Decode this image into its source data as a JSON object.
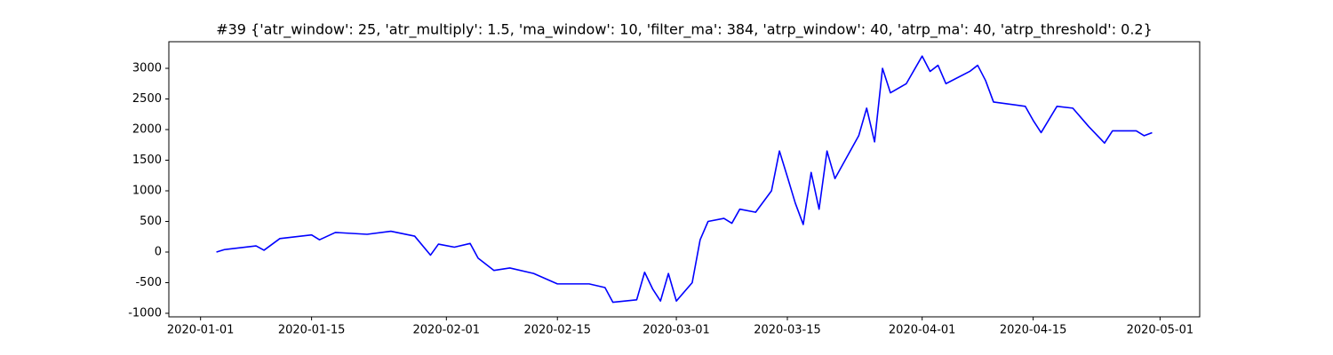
{
  "chart_data": {
    "type": "line",
    "title": "#39 {'atr_window': 25, 'atr_multiply': 1.5, 'ma_window': 10, 'filter_ma': 384, 'atrp_window': 40, 'atrp_ma': 40, 'atrp_threshold': 0.2}",
    "x": [
      "2020-01-03",
      "2020-01-04",
      "2020-01-08",
      "2020-01-09",
      "2020-01-11",
      "2020-01-15",
      "2020-01-16",
      "2020-01-18",
      "2020-01-22",
      "2020-01-25",
      "2020-01-28",
      "2020-01-30",
      "2020-01-31",
      "2020-02-02",
      "2020-02-04",
      "2020-02-05",
      "2020-02-07",
      "2020-02-09",
      "2020-02-12",
      "2020-02-15",
      "2020-02-19",
      "2020-02-21",
      "2020-02-22",
      "2020-02-25",
      "2020-02-26",
      "2020-02-27",
      "2020-02-28",
      "2020-02-29",
      "2020-03-01",
      "2020-03-03",
      "2020-03-04",
      "2020-03-05",
      "2020-03-07",
      "2020-03-08",
      "2020-03-09",
      "2020-03-11",
      "2020-03-13",
      "2020-03-14",
      "2020-03-15",
      "2020-03-16",
      "2020-03-17",
      "2020-03-18",
      "2020-03-19",
      "2020-03-20",
      "2020-03-21",
      "2020-03-24",
      "2020-03-25",
      "2020-03-26",
      "2020-03-27",
      "2020-03-28",
      "2020-03-30",
      "2020-04-01",
      "2020-04-02",
      "2020-04-03",
      "2020-04-04",
      "2020-04-07",
      "2020-04-08",
      "2020-04-09",
      "2020-04-10",
      "2020-04-14",
      "2020-04-15",
      "2020-04-16",
      "2020-04-18",
      "2020-04-20",
      "2020-04-22",
      "2020-04-24",
      "2020-04-25",
      "2020-04-28",
      "2020-04-29",
      "2020-04-30"
    ],
    "series": [
      {
        "color": "#0000ff",
        "values": [
          0,
          40,
          100,
          30,
          220,
          280,
          200,
          320,
          290,
          340,
          260,
          -50,
          130,
          80,
          140,
          -100,
          -300,
          -260,
          -350,
          -520,
          -520,
          -580,
          -820,
          -780,
          -330,
          -600,
          -800,
          -350,
          -800,
          -500,
          200,
          500,
          550,
          470,
          700,
          650,
          1000,
          1650,
          1230,
          800,
          450,
          1300,
          700,
          1650,
          1200,
          1900,
          2350,
          1800,
          3000,
          2600,
          2750,
          3200,
          2950,
          3050,
          2750,
          2950,
          3050,
          2800,
          2450,
          2380,
          2150,
          1950,
          2380,
          2350,
          2050,
          1780,
          1980,
          1980,
          1900,
          1950
        ]
      }
    ],
    "xlim": [
      "2019-12-28",
      "2020-05-06"
    ],
    "xticks": [
      "2020-01-01",
      "2020-01-15",
      "2020-02-01",
      "2020-02-15",
      "2020-03-01",
      "2020-03-15",
      "2020-04-01",
      "2020-04-15",
      "2020-05-01"
    ],
    "ylim": [
      -1058,
      3435
    ],
    "yticks": [
      -1000,
      -500,
      0,
      500,
      1000,
      1500,
      2000,
      2500,
      3000
    ],
    "grid": false
  }
}
